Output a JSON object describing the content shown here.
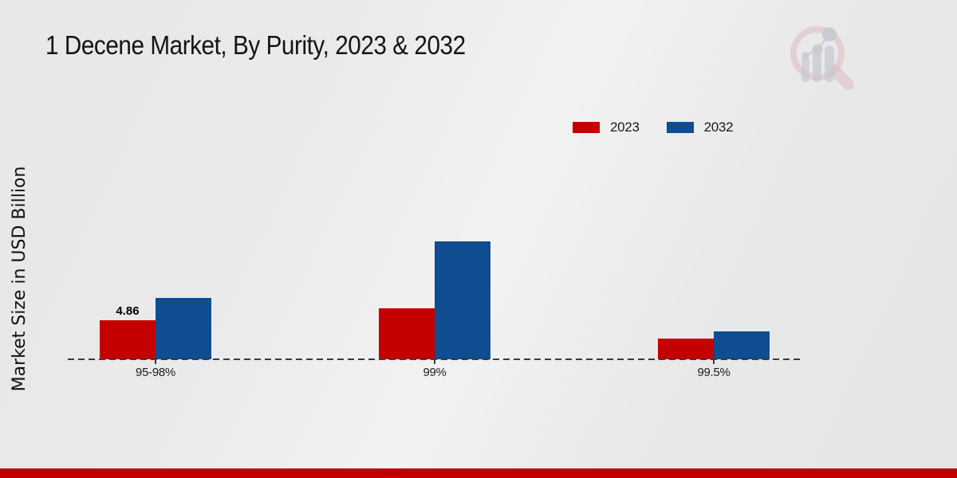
{
  "page": {
    "title": "1 Decene Market, By Purity, 2023 & 2032"
  },
  "axis": {
    "ylabel": "Market Size in USD Billion"
  },
  "legend": {
    "items": [
      {
        "label": "2023",
        "color": "#c40000"
      },
      {
        "label": "2032",
        "color": "#0e4d8f"
      }
    ]
  },
  "value_label": "4.86",
  "branding": {
    "logo_icon": "magnifier-bar-chart-watermark",
    "accent_bar_color": "#c00000"
  },
  "chart_data": {
    "type": "bar",
    "title": "1 Decene Market, By Purity, 2023 & 2032",
    "categories": [
      "95-98%",
      "99%",
      "99.5%"
    ],
    "series": [
      {
        "name": "2023",
        "color": "#c40000",
        "values": [
          4.86,
          6.35,
          2.58
        ]
      },
      {
        "name": "2032",
        "color": "#0e4d8f",
        "values": [
          7.64,
          14.68,
          3.47
        ]
      }
    ],
    "xlabel": "",
    "ylabel": "Market Size in USD Billion",
    "ylim": [
      0,
      16
    ],
    "grid": false,
    "baseline_style": "dashed",
    "legend_position": "top-right",
    "data_labels": [
      {
        "series": "2023",
        "category": "95-98%",
        "text": "4.86"
      }
    ]
  }
}
